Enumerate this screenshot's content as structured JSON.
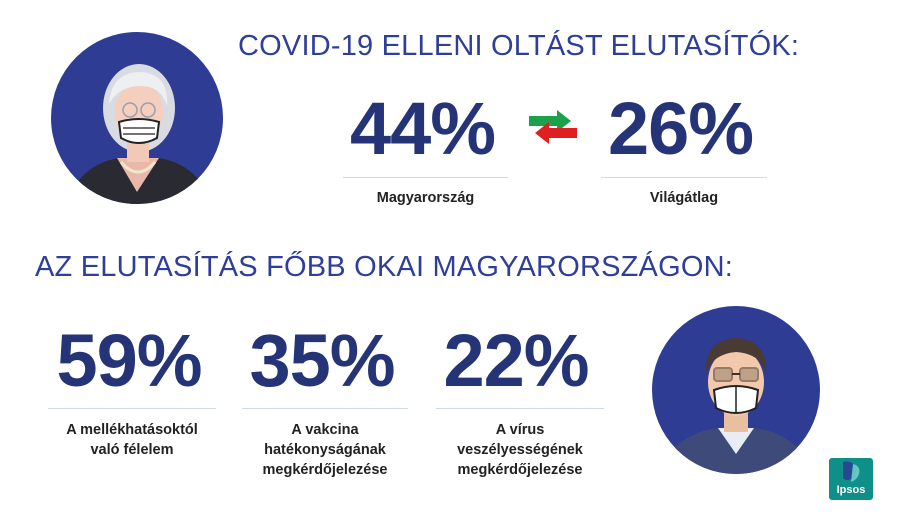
{
  "header": {
    "title": "COVID-19 ELLENI OLTÁST ELUTASÍTÓK:"
  },
  "comparison": {
    "hungary": {
      "value": "44%",
      "label": "Magyarország"
    },
    "world": {
      "value": "26%",
      "label": "Világátlag"
    },
    "arrow_colors": {
      "right": "#1aa34a",
      "left": "#e02020"
    }
  },
  "reasons": {
    "title": "AZ ELUTASÍTÁS FŐBB OKAI MAGYARORSZÁGON:",
    "items": [
      {
        "value": "59%",
        "lines": [
          "A mellékhatásoktól",
          "való félelem"
        ]
      },
      {
        "value": "35%",
        "lines": [
          "A vakcina",
          "hatékonyságának",
          "megkérdőjelezése"
        ]
      },
      {
        "value": "22%",
        "lines": [
          "A vírus",
          "veszélyességének",
          "megkérdőjelezése"
        ]
      }
    ]
  },
  "logo": {
    "text": "Ipsos",
    "color": "#0f8f8a"
  },
  "colors": {
    "accent": "#2f3f99",
    "circle": "#2e3c93",
    "number": "#243477"
  }
}
